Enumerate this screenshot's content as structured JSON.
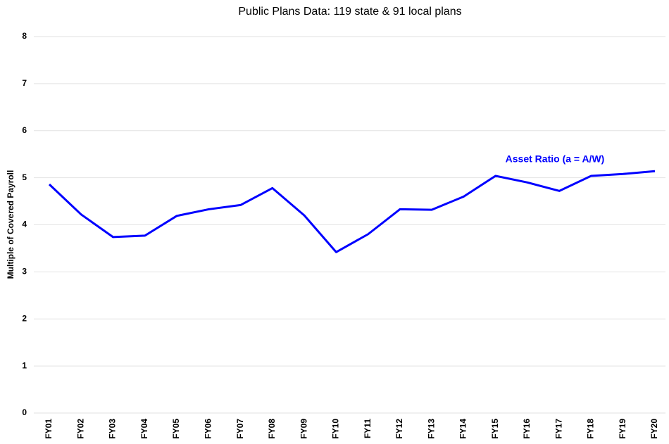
{
  "chart_data": {
    "type": "line",
    "title": "Public Plans Data: 119 state & 91 local plans",
    "y_label": "Multiple of Covered Payroll",
    "categories": [
      "FY01",
      "FY02",
      "FY03",
      "FY04",
      "FY05",
      "FY06",
      "FY07",
      "FY08",
      "FY09",
      "FY10",
      "FY11",
      "FY12",
      "FY13",
      "FY14",
      "FY15",
      "FY16",
      "FY17",
      "FY18",
      "FY19",
      "FY20"
    ],
    "series": [
      {
        "name": "Asset Ratio (a = A/W)",
        "color": "#0000ff",
        "values": [
          4.86,
          4.22,
          3.74,
          3.77,
          4.19,
          4.33,
          4.42,
          4.78,
          4.2,
          3.42,
          3.8,
          4.33,
          4.32,
          4.6,
          5.04,
          4.9,
          4.72,
          5.04,
          5.08,
          5.14
        ]
      }
    ],
    "ylim": [
      0,
      8
    ],
    "yticks": [
      0,
      1,
      2,
      3,
      4,
      5,
      6,
      7,
      8
    ],
    "grid": true
  }
}
